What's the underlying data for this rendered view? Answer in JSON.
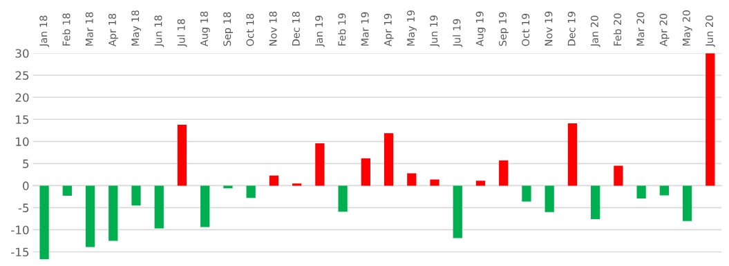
{
  "chart_data": {
    "type": "bar",
    "categories": [
      "Jan 18",
      "Feb 18",
      "Mar 18",
      "Apr 18",
      "May 18",
      "Jun 18",
      "Jul 18",
      "Aug 18",
      "Sep 18",
      "Oct 18",
      "Nov 18",
      "Dec 18",
      "Jan 19",
      "Feb 19",
      "Mar 19",
      "Apr 19",
      "May 19",
      "Jun 19",
      "Jul 19",
      "Aug 19",
      "Sep 19",
      "Oct 19",
      "Nov 19",
      "Dec 19",
      "Jan 20",
      "Feb 20",
      "Mar 20",
      "Apr 20",
      "May 20",
      "Jun 20"
    ],
    "values": [
      -16.7,
      -2.3,
      -13.9,
      -12.5,
      -4.5,
      -9.7,
      13.8,
      -9.4,
      -0.6,
      -2.8,
      2.3,
      0.5,
      9.6,
      -5.9,
      6.2,
      11.9,
      2.8,
      1.4,
      -11.9,
      1.1,
      5.7,
      -3.6,
      -6.0,
      14.1,
      -7.6,
      4.5,
      -2.9,
      -2.2,
      -8.0,
      30
    ],
    "colors": [
      "#00b050",
      "#00b050",
      "#00b050",
      "#00b050",
      "#00b050",
      "#00b050",
      "#ff0000",
      "#00b050",
      "#00b050",
      "#00b050",
      "#ff0000",
      "#ff0000",
      "#ff0000",
      "#00b050",
      "#ff0000",
      "#ff0000",
      "#ff0000",
      "#ff0000",
      "#00b050",
      "#ff0000",
      "#ff0000",
      "#00b050",
      "#00b050",
      "#ff0000",
      "#00b050",
      "#ff0000",
      "#00b050",
      "#00b050",
      "#00b050",
      "#ff0000"
    ],
    "ylim": [
      -17,
      30
    ],
    "yticks": [
      -15,
      -10,
      -5,
      0,
      5,
      10,
      15,
      20,
      25,
      30
    ],
    "grid": "y"
  }
}
